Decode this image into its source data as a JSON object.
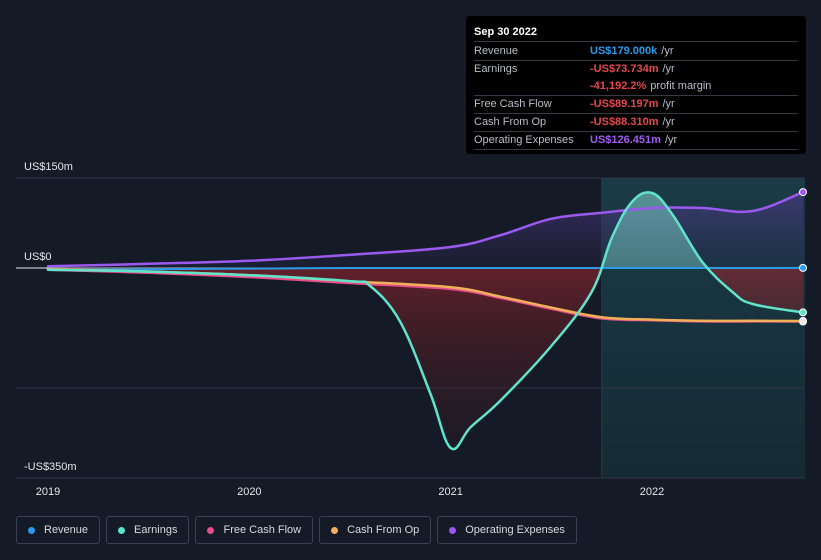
{
  "chart_data": {
    "type": "area",
    "title": "",
    "xlabel": "",
    "ylabel": "",
    "x_ticks": [
      "2019",
      "2020",
      "2021",
      "2022"
    ],
    "x_tick_values": [
      2019.0,
      2020.0,
      2021.0,
      2022.0
    ],
    "xlim": [
      2019.0,
      2022.75
    ],
    "ylim": [
      -350,
      150
    ],
    "y_tick_labels": [
      {
        "value": 150,
        "label": "US$150m"
      },
      {
        "value": 0,
        "label": "US$0"
      },
      {
        "value": -350,
        "label": "-US$350m"
      }
    ],
    "forecast_start": 2021.75,
    "series": [
      {
        "name": "Revenue",
        "color": "#2b9be8",
        "x": [
          2019.0,
          2019.5,
          2020.0,
          2020.5,
          2021.0,
          2021.5,
          2021.75,
          2022.0,
          2022.25,
          2022.5,
          2022.75
        ],
        "values": [
          -3,
          -2,
          -1,
          0,
          0,
          0,
          0,
          0,
          0,
          0,
          0.2
        ]
      },
      {
        "name": "Earnings",
        "color": "#5fe3cb",
        "x": [
          2019.0,
          2019.5,
          2020.0,
          2020.5,
          2020.6,
          2020.75,
          2020.9,
          2021.0,
          2021.1,
          2021.25,
          2021.5,
          2021.7,
          2021.8,
          2021.9,
          2022.0,
          2022.1,
          2022.25,
          2022.4,
          2022.5,
          2022.75
        ],
        "values": [
          -3,
          -6,
          -12,
          -22,
          -30,
          -90,
          -210,
          -300,
          -265,
          -220,
          -130,
          -40,
          50,
          110,
          125,
          90,
          10,
          -40,
          -60,
          -74
        ]
      },
      {
        "name": "Free Cash Flow",
        "color": "#e64b8c",
        "x": [
          2019.0,
          2019.5,
          2020.0,
          2020.5,
          2021.0,
          2021.25,
          2021.5,
          2021.75,
          2022.0,
          2022.25,
          2022.5,
          2022.75
        ],
        "values": [
          -3,
          -8,
          -15,
          -25,
          -35,
          -50,
          -68,
          -84,
          -87,
          -89,
          -89,
          -89.2
        ]
      },
      {
        "name": "Cash From Op",
        "color": "#f0b15a",
        "x": [
          2019.0,
          2019.5,
          2020.0,
          2020.5,
          2021.0,
          2021.25,
          2021.5,
          2021.75,
          2022.0,
          2022.25,
          2022.5,
          2022.75
        ],
        "values": [
          -2,
          -6,
          -12,
          -22,
          -32,
          -48,
          -66,
          -82,
          -86,
          -88,
          -88,
          -88.3
        ]
      },
      {
        "name": "Operating Expenses",
        "color": "#9b59f0",
        "x": [
          2019.0,
          2019.5,
          2020.0,
          2020.5,
          2021.0,
          2021.25,
          2021.5,
          2021.75,
          2022.0,
          2022.25,
          2022.5,
          2022.75
        ],
        "values": [
          3,
          7,
          12,
          22,
          35,
          55,
          82,
          92,
          100,
          100,
          95,
          126.5
        ]
      }
    ]
  },
  "tooltip": {
    "date": "Sep 30 2022",
    "rows": [
      {
        "label": "Revenue",
        "value": "US$179.000k",
        "unit": "/yr",
        "color": "#2b9be8"
      },
      {
        "label": "Earnings",
        "value": "-US$73.734m",
        "unit": "/yr",
        "color": "#e5484d"
      },
      {
        "label": "",
        "value": "-41,192.2%",
        "unit": "profit margin",
        "color": "#e5484d"
      },
      {
        "label": "Free Cash Flow",
        "value": "-US$89.197m",
        "unit": "/yr",
        "color": "#e5484d"
      },
      {
        "label": "Cash From Op",
        "value": "-US$88.310m",
        "unit": "/yr",
        "color": "#e5484d"
      },
      {
        "label": "Operating Expenses",
        "value": "US$126.451m",
        "unit": "/yr",
        "color": "#a35cf5"
      }
    ]
  },
  "legend": [
    {
      "label": "Revenue",
      "color": "#2b9be8"
    },
    {
      "label": "Earnings",
      "color": "#5fe3cb"
    },
    {
      "label": "Free Cash Flow",
      "color": "#e64b8c"
    },
    {
      "label": "Cash From Op",
      "color": "#f0b15a"
    },
    {
      "label": "Operating Expenses",
      "color": "#9b59f0"
    }
  ]
}
